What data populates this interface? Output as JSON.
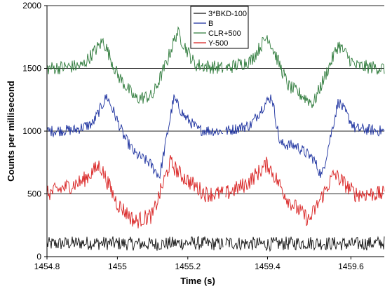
{
  "chart_data": {
    "type": "line",
    "title": "",
    "xlabel": "Time (s)",
    "ylabel": "Counts per millisecond",
    "ylim": [
      0,
      2000
    ],
    "yticks": [
      "0",
      "500",
      "1000",
      "1500",
      "2000"
    ],
    "grid": "horizontal",
    "legend_position": "top-center",
    "panels": [
      {
        "xlim": [
          1454.8,
          1455.3
        ],
        "xticks": [
          "1454.8",
          "1455",
          "1455.2"
        ]
      },
      {
        "xlim": [
          1459.3,
          1459.68
        ],
        "xticks": [
          "1459.4",
          "1459.6"
        ]
      }
    ],
    "series": [
      {
        "name": "3*BKD-100",
        "color": "#111111",
        "panels": [
          {
            "x": [
              1454.8,
              1454.9,
              1455.0,
              1455.1,
              1455.2,
              1455.3
            ],
            "y": [
              100,
              110,
              105,
              100,
              110,
              100
            ]
          },
          {
            "x": [
              1459.3,
              1459.4,
              1459.5,
              1459.6,
              1459.68
            ],
            "y": [
              110,
              100,
              110,
              100,
              110
            ]
          }
        ]
      },
      {
        "name": "B",
        "color": "#1a2f9e",
        "panels": [
          {
            "x": [
              1454.8,
              1454.88,
              1454.93,
              1454.97,
              1454.99,
              1455.02,
              1455.05,
              1455.09,
              1455.12,
              1455.16,
              1455.19,
              1455.23,
              1455.3
            ],
            "y": [
              1000,
              1010,
              1060,
              1280,
              1150,
              950,
              820,
              750,
              640,
              1260,
              1120,
              1010,
              1000
            ]
          },
          {
            "x": [
              1459.3,
              1459.36,
              1459.39,
              1459.41,
              1459.43,
              1459.47,
              1459.51,
              1459.53,
              1459.57,
              1459.61,
              1459.68
            ],
            "y": [
              1000,
              1050,
              1200,
              1280,
              900,
              880,
              780,
              640,
              1240,
              1020,
              1000
            ]
          }
        ]
      },
      {
        "name": "CLR+500",
        "color": "#2d7a3a",
        "panels": [
          {
            "x": [
              1454.8,
              1454.9,
              1454.96,
              1455.0,
              1455.05,
              1455.1,
              1455.14,
              1455.17,
              1455.22,
              1455.3
            ],
            "y": [
              1500,
              1520,
              1720,
              1450,
              1260,
              1280,
              1550,
              1790,
              1530,
              1500
            ]
          },
          {
            "x": [
              1459.3,
              1459.36,
              1459.4,
              1459.45,
              1459.51,
              1459.57,
              1459.61,
              1459.68
            ],
            "y": [
              1500,
              1560,
              1760,
              1360,
              1220,
              1690,
              1520,
              1500
            ]
          }
        ]
      },
      {
        "name": "Y-500",
        "color": "#d81e1e",
        "panels": [
          {
            "x": [
              1454.8,
              1454.9,
              1454.95,
              1455.0,
              1455.05,
              1455.1,
              1455.15,
              1455.18,
              1455.25,
              1455.3
            ],
            "y": [
              500,
              600,
              730,
              420,
              280,
              330,
              750,
              650,
              500,
              500
            ]
          },
          {
            "x": [
              1459.3,
              1459.35,
              1459.4,
              1459.45,
              1459.5,
              1459.56,
              1459.61,
              1459.68
            ],
            "y": [
              500,
              580,
              740,
              450,
              290,
              660,
              500,
              500
            ]
          }
        ]
      }
    ]
  }
}
